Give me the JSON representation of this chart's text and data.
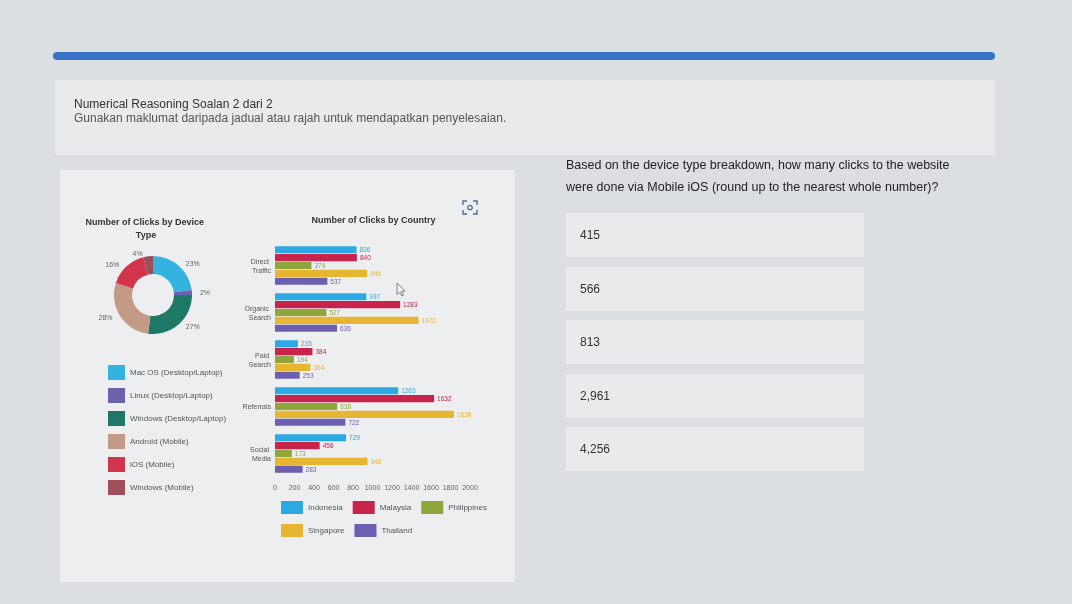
{
  "chart_data": [
    {
      "type": "other",
      "title": "Numerical Reasoning Soalan 2 dari 2",
      "subtitle": "Gunakan maklumat daripada jadual atau rajah untuk mendapatkan penyelesaian."
    },
    {
      "type": "donut",
      "title": "Number of Clicks by Device Type",
      "categories": [
        "Mac OS (Desktop/Laptop)",
        "Linux (Desktop/Laptop)",
        "Windows (Desktop/Laptop)",
        "Android (Mobile)",
        "iOS (Mobile)",
        "Windows (Mobile)"
      ],
      "values": [
        23,
        2,
        27,
        28,
        16,
        4
      ],
      "value_labels": [
        "23%",
        "2%",
        "27%",
        "28%",
        "16%",
        "4%"
      ],
      "colors": [
        "#35b3e0",
        "#6b62ad",
        "#1e7866",
        "#c29a85",
        "#d2344c",
        "#9e4f5a"
      ],
      "legend": "bottom"
    },
    {
      "type": "bar",
      "orientation": "horizontal",
      "title": "Number of Clicks by Country",
      "categories": [
        "Direct Traffic",
        "Organic Search",
        "Paid Search",
        "Referrals",
        "Social Media"
      ],
      "series": [
        {
          "name": "Indonesia",
          "color": "#2ca8e2",
          "values": [
            836,
            937,
            235,
            1263,
            729
          ]
        },
        {
          "name": "Malaysia",
          "color": "#c8234a",
          "values": [
            840,
            1283,
            384,
            1632,
            458
          ]
        },
        {
          "name": "Philippines",
          "color": "#8fa63c",
          "values": [
            374,
            527,
            194,
            638,
            173
          ]
        },
        {
          "name": "Singapore",
          "color": "#e6b532",
          "values": [
            945,
            1472,
            364,
            1836,
            948
          ]
        },
        {
          "name": "Thailand",
          "color": "#6c5fb0",
          "values": [
            537,
            636,
            253,
            722,
            283
          ]
        }
      ],
      "xlim": [
        0,
        2000
      ],
      "xticks": [
        0,
        200,
        400,
        600,
        800,
        1000,
        1200,
        1400,
        1600,
        1800,
        2000
      ],
      "grid": false,
      "legend": "bottom",
      "data_labels": true
    },
    {
      "type": "other",
      "title": "Based on the device type breakdown, how many clicks to the website were done via Mobile iOS (round up to the nearest whole number)?",
      "annotations": [
        "415",
        "566",
        "813",
        "2,961",
        "4,256"
      ]
    }
  ]
}
